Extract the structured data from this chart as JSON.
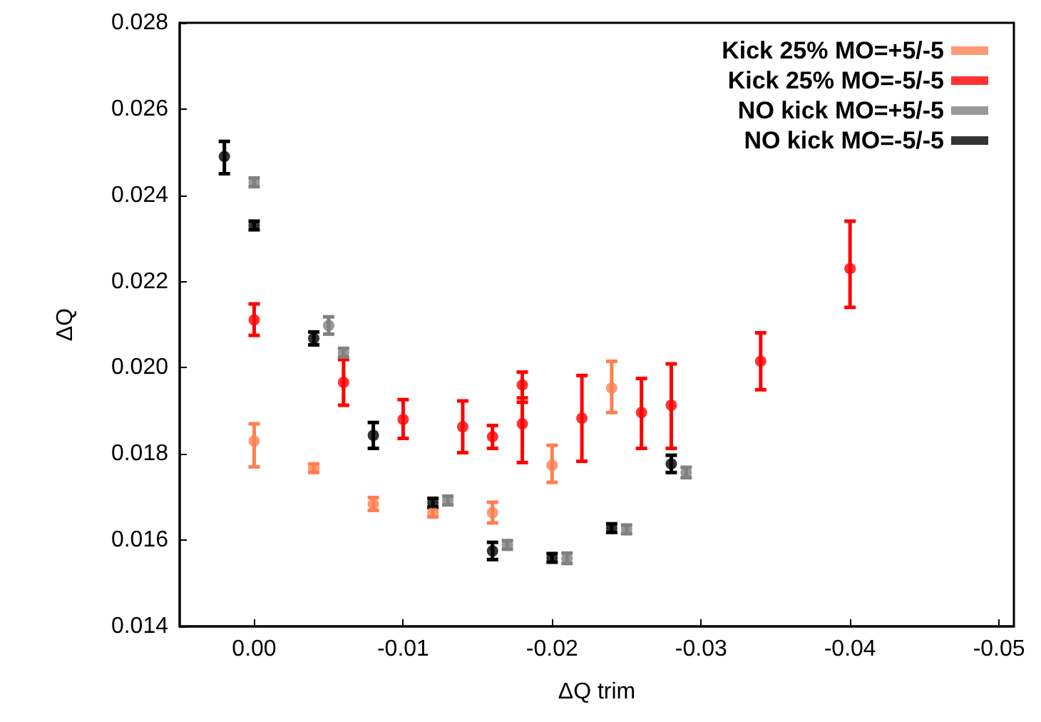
{
  "chart_data": {
    "type": "scatter",
    "xlabel": "ΔQ trim",
    "ylabel": "ΔQ",
    "xlim": [
      0.005,
      -0.051
    ],
    "ylim": [
      0.014,
      0.028
    ],
    "xticks": [
      {
        "value": 0,
        "label": "0.00"
      },
      {
        "value": -0.01,
        "label": "-0.01"
      },
      {
        "value": -0.02,
        "label": "-0.02"
      },
      {
        "value": -0.03,
        "label": "-0.03"
      },
      {
        "value": -0.04,
        "label": "-0.04"
      },
      {
        "value": -0.05,
        "label": "-0.05"
      }
    ],
    "yticks": [
      {
        "value": 0.014,
        "label": "0.014"
      },
      {
        "value": 0.016,
        "label": "0.016"
      },
      {
        "value": 0.018,
        "label": "0.018"
      },
      {
        "value": 0.02,
        "label": "0.020"
      },
      {
        "value": 0.022,
        "label": "0.022"
      },
      {
        "value": 0.024,
        "label": "0.024"
      },
      {
        "value": 0.026,
        "label": "0.026"
      },
      {
        "value": 0.028,
        "label": "0.028"
      }
    ],
    "grid": false,
    "legend": "top right",
    "marker": "circle",
    "series": [
      {
        "name": "Kick 25% MO=+5/-5",
        "color": "#ff7f50",
        "x": [
          0,
          -0.004,
          -0.008,
          -0.012,
          -0.016,
          -0.02,
          -0.024
        ],
        "values": [
          0.0183,
          0.01767,
          0.01684,
          0.01664,
          0.01664,
          0.01774,
          0.01953
        ],
        "errors": [
          [
            0.0177,
            0.0187
          ],
          [
            0.01757,
            0.01777
          ],
          [
            0.01669,
            0.01699
          ],
          [
            0.01654,
            0.01674
          ],
          [
            0.0164,
            0.01688
          ],
          [
            0.01734,
            0.0182
          ],
          [
            0.01896,
            0.02015
          ]
        ]
      },
      {
        "name": "Kick 25% MO=-5/-5",
        "color": "#ff0000",
        "x": [
          0,
          -0.006,
          -0.01,
          -0.014,
          -0.016,
          -0.018,
          -0.018,
          -0.022,
          -0.026,
          -0.028,
          -0.034,
          -0.04
        ],
        "values": [
          0.02111,
          0.01966,
          0.0188,
          0.01863,
          0.0184,
          0.0196,
          0.0187,
          0.01883,
          0.01896,
          0.01913,
          0.02015,
          0.0223
        ],
        "errors": [
          [
            0.02075,
            0.02148
          ],
          [
            0.01913,
            0.02019
          ],
          [
            0.01836,
            0.01926
          ],
          [
            0.01803,
            0.01923
          ],
          [
            0.01813,
            0.01866
          ],
          [
            0.0192,
            0.0199
          ],
          [
            0.0178,
            0.0193
          ],
          [
            0.01783,
            0.01982
          ],
          [
            0.01813,
            0.01975
          ],
          [
            0.01813,
            0.02009
          ],
          [
            0.01949,
            0.02081
          ],
          [
            0.0214,
            0.0234
          ]
        ]
      },
      {
        "name": "NO kick MO=+5/-5",
        "color": "#808080",
        "x": [
          0,
          -0.005,
          -0.006,
          -0.013,
          -0.017,
          -0.021,
          -0.025,
          -0.029
        ],
        "values": [
          0.0243,
          0.02098,
          0.02035,
          0.01692,
          0.01589,
          0.01558,
          0.01625,
          0.01757
        ],
        "errors": [
          [
            0.0242,
            0.0244
          ],
          [
            0.02078,
            0.02118
          ],
          [
            0.02025,
            0.02045
          ],
          [
            0.01682,
            0.01702
          ],
          [
            0.01579,
            0.01599
          ],
          [
            0.01546,
            0.0157
          ],
          [
            0.01615,
            0.01635
          ],
          [
            0.01745,
            0.01769
          ]
        ]
      },
      {
        "name": "NO kick MO=-5/-5",
        "color": "#000000",
        "x": [
          0.002,
          0,
          -0.004,
          -0.008,
          -0.012,
          -0.016,
          -0.02,
          -0.024,
          -0.028
        ],
        "values": [
          0.0249,
          0.0233,
          0.02068,
          0.01843,
          0.01687,
          0.01575,
          0.01559,
          0.01628,
          0.01777
        ],
        "errors": [
          [
            0.0245,
            0.02525
          ],
          [
            0.0232,
            0.0234
          ],
          [
            0.02053,
            0.02083
          ],
          [
            0.01813,
            0.01873
          ],
          [
            0.01677,
            0.01697
          ],
          [
            0.01555,
            0.01595
          ],
          [
            0.01549,
            0.01569
          ],
          [
            0.01618,
            0.01638
          ],
          [
            0.01757,
            0.01797
          ]
        ]
      }
    ]
  }
}
